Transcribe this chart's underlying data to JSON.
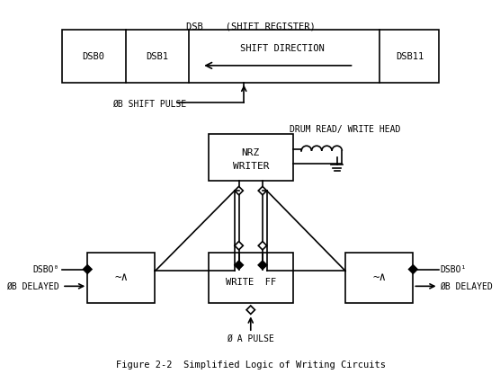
{
  "title": "Figure 2-2  Simplified Logic of Writing Circuits",
  "bg_color": "#ffffff",
  "fg_color": "#000000",
  "dsb_label": "DSB    (SHIFT REGISTER)",
  "dsb0_label": "DSB0",
  "dsb1_label": "DSB1",
  "dsb11_label": "DSB11",
  "shift_direction_label": "SHIFT DIRECTION",
  "phi_b_shift_pulse": "ØB SHIFT PULSE",
  "drum_head_label": "DRUM READ/ WRITE HEAD",
  "nrz_label": [
    "NRZ",
    "WRITER"
  ],
  "write_ff_label": [
    "WRITE  FF"
  ],
  "dsbo0_label": "DSBO⁰",
  "phi_b_delayed_left": "ØB DELAYED",
  "dsbo1_label": "DSBO¹",
  "phi_b_delayed_right": "ØB DELAYED",
  "phi_a_pulse": "Ø A PULSE"
}
